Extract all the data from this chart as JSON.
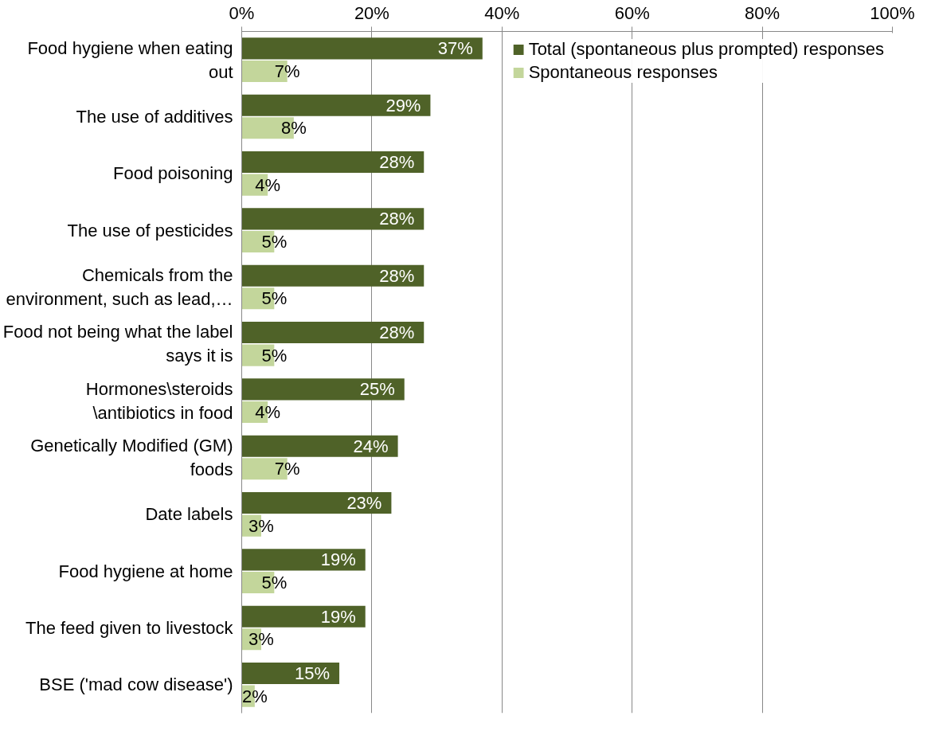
{
  "chart_data": {
    "type": "bar",
    "orientation": "horizontal",
    "categories": [
      "Food hygiene when eating\nout",
      "The use of additives",
      "Food poisoning",
      "The use of pesticides",
      "Chemicals from the\nenvironment, such as lead,…",
      "Food not being what the label\nsays it is",
      "Hormones\\steroids\n\\antibiotics in food",
      "Genetically Modified (GM)\nfoods",
      "Date labels",
      "Food hygiene at home",
      "The feed given to livestock",
      "BSE ('mad cow disease')"
    ],
    "series": [
      {
        "name": "Total (spontaneous plus prompted) responses",
        "color": "#4f6228",
        "values": [
          37,
          29,
          28,
          28,
          28,
          28,
          25,
          24,
          23,
          19,
          19,
          15
        ],
        "value_labels": [
          "37%",
          "29%",
          "28%",
          "28%",
          "28%",
          "28%",
          "25%",
          "24%",
          "23%",
          "19%",
          "19%",
          "15%"
        ]
      },
      {
        "name": "Spontaneous responses",
        "color": "#c3d69b",
        "values": [
          7,
          8,
          4,
          5,
          5,
          5,
          4,
          7,
          3,
          5,
          3,
          2
        ],
        "value_labels": [
          "7%",
          "8%",
          "4%",
          "5%",
          "5%",
          "5%",
          "4%",
          "7%",
          "3%",
          "5%",
          "3%",
          "2%"
        ]
      }
    ],
    "xlim": [
      0,
      100
    ],
    "xticks": [
      {
        "value": 0,
        "label": "0%"
      },
      {
        "value": 20,
        "label": "20%"
      },
      {
        "value": 40,
        "label": "40%"
      },
      {
        "value": 60,
        "label": "60%"
      },
      {
        "value": 80,
        "label": "80%"
      },
      {
        "value": 100,
        "label": "100%"
      }
    ],
    "grid": "x",
    "legend": "top right"
  }
}
